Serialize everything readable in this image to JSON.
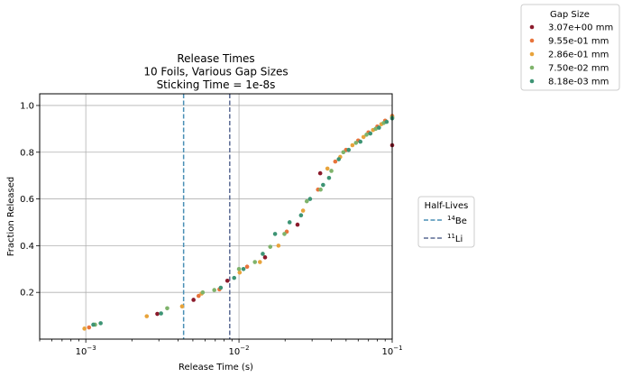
{
  "chart_data": {
    "type": "scatter",
    "title_lines": [
      "Release Times",
      "10 Foils, Various Gap Sizes",
      "Sticking Time = 1e-8s"
    ],
    "xlabel": "Release Time (s)",
    "ylabel": "Fraction Released",
    "xscale": "log",
    "xlim": [
      0.0005,
      0.1
    ],
    "ylim": [
      0.0,
      1.05
    ],
    "grid": true,
    "x_ticks": [
      {
        "value": 0.001,
        "base": "10",
        "exp": "−3"
      },
      {
        "value": 0.01,
        "base": "10",
        "exp": "−2"
      },
      {
        "value": 0.1,
        "base": "10",
        "exp": "−1"
      }
    ],
    "y_ticks": [
      {
        "value": 0.2,
        "label": "0.2"
      },
      {
        "value": 0.4,
        "label": "0.4"
      },
      {
        "value": 0.6,
        "label": "0.6"
      },
      {
        "value": 0.8,
        "label": "0.8"
      },
      {
        "value": 1.0,
        "label": "1.0"
      }
    ],
    "legend_gap": {
      "title": "Gap Size",
      "placement": "outside upper right"
    },
    "legend_halflives": {
      "title": "Half-Lives",
      "placement": "outside center right"
    },
    "series": [
      {
        "name": "3.07e+00 mm",
        "color": "#8b1a2b",
        "x": [
          0.00293,
          0.00505,
          0.0084,
          0.0148,
          0.0241,
          0.0339,
          0.1
        ],
        "y": [
          0.108,
          0.168,
          0.25,
          0.35,
          0.49,
          0.71,
          0.83
        ]
      },
      {
        "name": "9.55e-01 mm",
        "color": "#e8743b",
        "x": [
          0.00105,
          0.00545,
          0.00745,
          0.0113,
          0.0205,
          0.0328,
          0.0425,
          0.05,
          0.06,
          0.07,
          0.08,
          0.09,
          0.1
        ],
        "y": [
          0.05,
          0.185,
          0.213,
          0.31,
          0.46,
          0.64,
          0.76,
          0.81,
          0.85,
          0.885,
          0.91,
          0.935,
          0.955
        ]
      },
      {
        "name": "2.86e-01 mm",
        "color": "#e8a33b",
        "x": [
          0.00098,
          0.0025,
          0.00425,
          0.0057,
          0.0101,
          0.0137,
          0.0181,
          0.0262,
          0.0378,
          0.0458,
          0.055,
          0.065,
          0.075,
          0.085,
          0.1
        ],
        "y": [
          0.045,
          0.098,
          0.14,
          0.195,
          0.285,
          0.33,
          0.4,
          0.55,
          0.73,
          0.78,
          0.83,
          0.865,
          0.895,
          0.92,
          0.95
        ]
      },
      {
        "name": "7.50e-02 mm",
        "color": "#7fb36b",
        "x": [
          0.00115,
          0.0034,
          0.0058,
          0.0069,
          0.01,
          0.0127,
          0.016,
          0.0198,
          0.0277,
          0.0341,
          0.0401,
          0.048,
          0.058,
          0.068,
          0.078,
          0.088,
          0.1
        ],
        "y": [
          0.062,
          0.132,
          0.2,
          0.21,
          0.3,
          0.33,
          0.395,
          0.45,
          0.59,
          0.64,
          0.72,
          0.8,
          0.84,
          0.875,
          0.9,
          0.925,
          0.948
        ]
      },
      {
        "name": "8.18e-03 mm",
        "color": "#3d9474",
        "x": [
          0.00112,
          0.00125,
          0.0031,
          0.0076,
          0.0093,
          0.0107,
          0.0143,
          0.0172,
          0.0214,
          0.0254,
          0.0291,
          0.0354,
          0.0387,
          0.0448,
          0.052,
          0.062,
          0.072,
          0.082,
          0.092,
          0.1
        ],
        "y": [
          0.062,
          0.068,
          0.11,
          0.22,
          0.262,
          0.3,
          0.365,
          0.45,
          0.5,
          0.53,
          0.6,
          0.66,
          0.69,
          0.77,
          0.81,
          0.845,
          0.88,
          0.905,
          0.93,
          0.945
        ]
      }
    ],
    "vlines": [
      {
        "name_base": "Be",
        "name_sup": "14",
        "x": 0.00435,
        "color": "#4a8fb5"
      },
      {
        "name_base": "Li",
        "name_sup": "11",
        "x": 0.0087,
        "color": "#5a6a93"
      }
    ]
  }
}
